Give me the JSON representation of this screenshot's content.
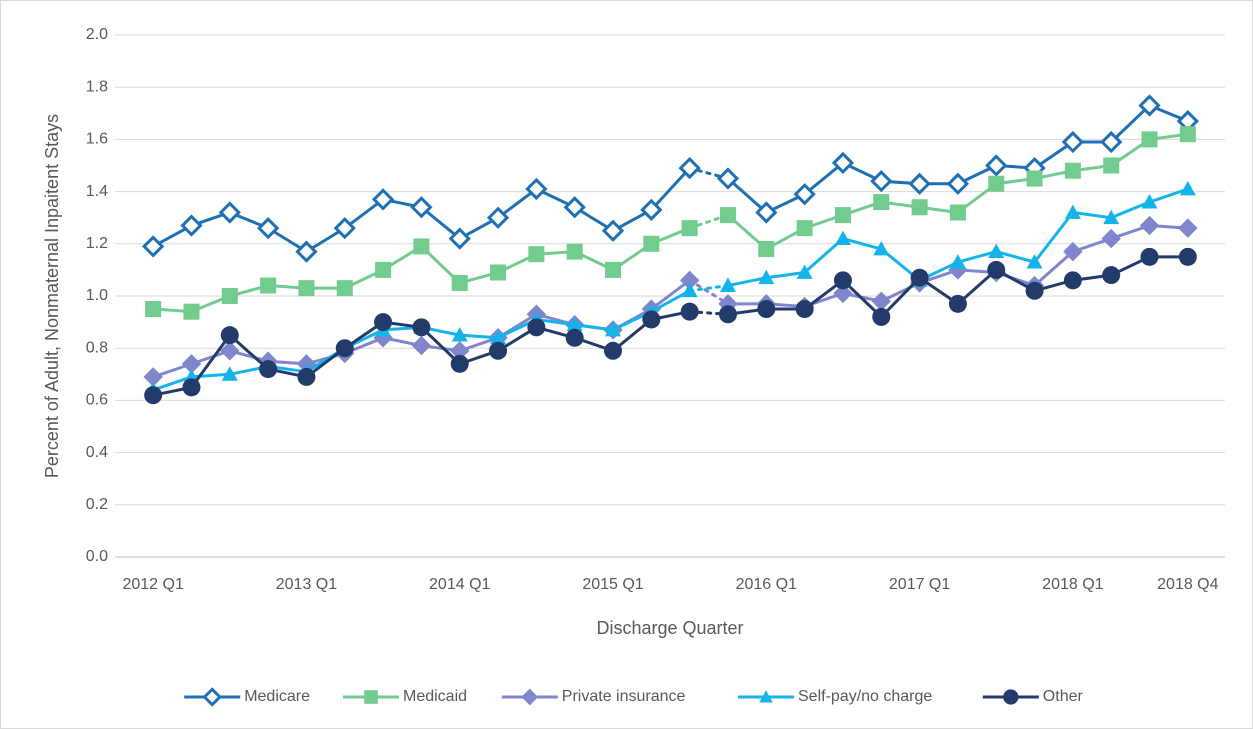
{
  "chart_data": {
    "type": "line",
    "x_label": "Discharge Quarter",
    "y_label": "Percent of Adult, Nonmaternal Inpaitent Stays",
    "categories": [
      "2012 Q1",
      null,
      null,
      null,
      "2013 Q1",
      null,
      null,
      null,
      "2014 Q1",
      null,
      null,
      null,
      "2015 Q1",
      null,
      null,
      null,
      "2016 Q1",
      null,
      null,
      null,
      "2017 Q1",
      null,
      null,
      null,
      "2018 Q1",
      null,
      null,
      "2018 Q4"
    ],
    "ylim": [
      0,
      2
    ],
    "yticks": [
      {
        "value": 0,
        "label": "0.0"
      },
      {
        "value": 0.2,
        "label": "0.2"
      },
      {
        "value": 0.4,
        "label": "0.4"
      },
      {
        "value": 0.6,
        "label": "0.6"
      },
      {
        "value": 0.8,
        "label": "0.8"
      },
      {
        "value": 1,
        "label": "1.0"
      },
      {
        "value": 1.2,
        "label": "1.2"
      },
      {
        "value": 1.4,
        "label": "1.4"
      },
      {
        "value": 1.6,
        "label": "1.6"
      },
      {
        "value": 1.8,
        "label": "1.8"
      },
      {
        "value": 2,
        "label": "2.0"
      }
    ],
    "grid": true,
    "legend": "bottom",
    "series": [
      {
        "name": "Medicare",
        "color": "#1f6fb4",
        "marker": "diamond-open",
        "values": [
          1.19,
          1.27,
          1.32,
          1.26,
          1.17,
          1.26,
          1.37,
          1.34,
          1.22,
          1.3,
          1.41,
          1.34,
          1.25,
          1.33,
          1.49,
          1.45,
          1.32,
          1.39,
          1.51,
          1.44,
          1.43,
          1.43,
          1.5,
          1.49,
          1.59,
          1.59,
          1.73,
          1.67
        ]
      },
      {
        "name": "Medicaid",
        "color": "#72cb8f",
        "marker": "square",
        "values": [
          0.95,
          0.94,
          1.0,
          1.04,
          1.03,
          1.03,
          1.1,
          1.19,
          1.05,
          1.09,
          1.16,
          1.17,
          1.1,
          1.2,
          1.26,
          1.31,
          1.18,
          1.26,
          1.31,
          1.36,
          1.34,
          1.32,
          1.43,
          1.45,
          1.48,
          1.5,
          1.6,
          1.62
        ]
      },
      {
        "name": "Private insurance",
        "color": "#7f86cc",
        "marker": "diamond",
        "values": [
          0.69,
          0.74,
          0.79,
          0.75,
          0.74,
          0.78,
          0.84,
          0.81,
          0.79,
          0.84,
          0.93,
          0.89,
          0.87,
          0.95,
          1.06,
          0.97,
          0.97,
          0.96,
          1.01,
          0.98,
          1.05,
          1.1,
          1.09,
          1.04,
          1.17,
          1.22,
          1.27,
          1.26
        ]
      },
      {
        "name": "Self-pay/no charge",
        "color": "#14b4ea",
        "marker": "triangle",
        "values": [
          0.64,
          0.69,
          0.7,
          0.73,
          0.71,
          0.8,
          0.87,
          0.88,
          0.85,
          0.84,
          0.91,
          0.89,
          0.87,
          0.94,
          1.02,
          1.04,
          1.07,
          1.09,
          1.22,
          1.18,
          1.06,
          1.13,
          1.17,
          1.13,
          1.32,
          1.3,
          1.36,
          1.41
        ]
      },
      {
        "name": "Other",
        "color": "#233b6a",
        "marker": "circle",
        "values": [
          0.62,
          0.65,
          0.85,
          0.72,
          0.69,
          0.8,
          0.9,
          0.88,
          0.74,
          0.79,
          0.88,
          0.84,
          0.79,
          0.91,
          0.94,
          0.93,
          0.95,
          0.95,
          1.06,
          0.92,
          1.07,
          0.97,
          1.1,
          1.02,
          1.06,
          1.08,
          1.15,
          1.15
        ]
      }
    ]
  }
}
